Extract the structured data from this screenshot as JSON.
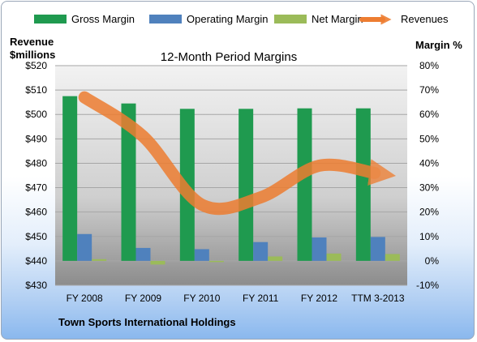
{
  "chart_data": {
    "type": "bar",
    "title": "12-Month Period Margins",
    "footer": "Town Sports International Holdings",
    "left_axis_label": [
      "Revenue",
      "$millions"
    ],
    "right_axis_label": "Margin %",
    "categories": [
      "FY 2008",
      "FY 2009",
      "FY 2010",
      "FY 2011",
      "FY 2012",
      "TTM 3-2013"
    ],
    "left_axis": {
      "min": 430,
      "max": 520,
      "step": 10,
      "tick_labels": [
        "$430",
        "$440",
        "$450",
        "$460",
        "$470",
        "$480",
        "$490",
        "$500",
        "$510",
        "$520"
      ]
    },
    "right_axis": {
      "min": -10,
      "max": 80,
      "step": 10,
      "tick_labels": [
        "-10%",
        "0%",
        "10%",
        "20%",
        "30%",
        "40%",
        "50%",
        "60%",
        "70%",
        "80%"
      ]
    },
    "grid": true,
    "legend_position": "top",
    "series": [
      {
        "name": "Gross Margin",
        "kind": "bar",
        "axis": "right",
        "color": "#1f9a4f",
        "values": [
          67.5,
          64.5,
          62.3,
          62.3,
          62.5,
          62.5
        ]
      },
      {
        "name": "Operating Margin",
        "kind": "bar",
        "axis": "right",
        "color": "#4f81bd",
        "values": [
          11.0,
          5.3,
          4.8,
          7.7,
          9.6,
          9.8
        ]
      },
      {
        "name": "Net Margin",
        "kind": "bar",
        "axis": "right",
        "color": "#9bbb59",
        "values": [
          0.7,
          -1.5,
          -0.3,
          1.8,
          3.0,
          2.8
        ]
      },
      {
        "name": "Revenues",
        "kind": "line",
        "axis": "left",
        "color": "#ed7d31",
        "values": [
          507,
          491,
          463,
          466,
          479,
          476
        ]
      }
    ]
  }
}
